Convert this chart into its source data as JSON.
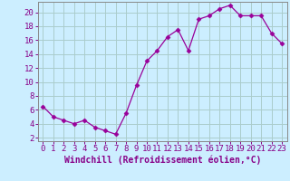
{
  "x": [
    0,
    1,
    2,
    3,
    4,
    5,
    6,
    7,
    8,
    9,
    10,
    11,
    12,
    13,
    14,
    15,
    16,
    17,
    18,
    19,
    20,
    21,
    22,
    23
  ],
  "y": [
    6.5,
    5.0,
    4.5,
    4.0,
    4.5,
    3.5,
    3.0,
    2.5,
    5.5,
    9.5,
    13.0,
    14.5,
    16.5,
    17.5,
    14.5,
    19.0,
    19.5,
    20.5,
    21.0,
    19.5,
    19.5,
    19.5,
    17.0,
    15.5
  ],
  "line_color": "#990099",
  "marker": "D",
  "marker_size": 2.5,
  "bg_color": "#cceeff",
  "grid_color": "#aacccc",
  "xlabel": "Windchill (Refroidissement éolien,°C)",
  "xlim": [
    -0.5,
    23.5
  ],
  "ylim": [
    1.5,
    21.5
  ],
  "xticks": [
    0,
    1,
    2,
    3,
    4,
    5,
    6,
    7,
    8,
    9,
    10,
    11,
    12,
    13,
    14,
    15,
    16,
    17,
    18,
    19,
    20,
    21,
    22,
    23
  ],
  "yticks": [
    2,
    4,
    6,
    8,
    10,
    12,
    14,
    16,
    18,
    20
  ],
  "xlabel_fontsize": 7,
  "tick_fontsize": 6.5
}
